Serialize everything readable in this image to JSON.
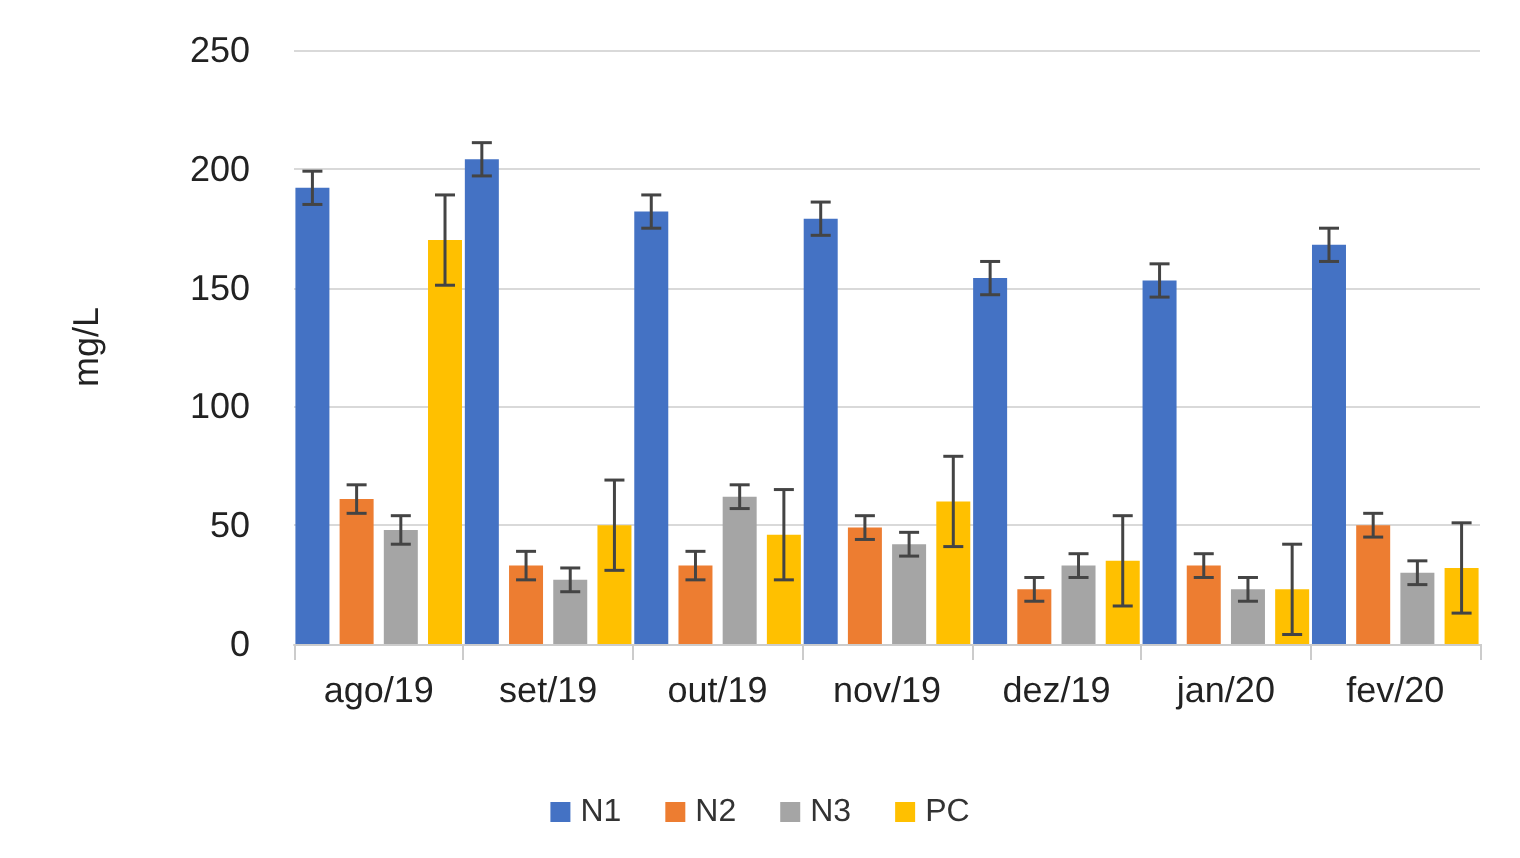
{
  "chart_data": {
    "type": "bar",
    "ylabel": "mg/L",
    "categories": [
      "ago/19",
      "set/19",
      "out/19",
      "nov/19",
      "dez/19",
      "jan/20",
      "fev/20"
    ],
    "series": [
      {
        "name": "N1",
        "color": "#4472c4",
        "values": [
          192,
          204,
          182,
          179,
          154,
          153,
          168
        ],
        "errors": [
          7,
          7,
          7,
          7,
          7,
          7,
          7
        ]
      },
      {
        "name": "N2",
        "color": "#ed7d31",
        "values": [
          61,
          33,
          33,
          49,
          23,
          33,
          50
        ],
        "errors": [
          6,
          6,
          6,
          5,
          5,
          5,
          5
        ]
      },
      {
        "name": "N3",
        "color": "#a5a5a5",
        "values": [
          48,
          27,
          62,
          42,
          33,
          23,
          30
        ],
        "errors": [
          6,
          5,
          5,
          5,
          5,
          5,
          5
        ]
      },
      {
        "name": "PC",
        "color": "#ffc000",
        "values": [
          170,
          50,
          46,
          60,
          35,
          23,
          32
        ],
        "errors": [
          19,
          19,
          19,
          19,
          19,
          19,
          19
        ]
      }
    ],
    "ylim": [
      0,
      250
    ],
    "yticks": [
      0,
      50,
      100,
      150,
      200,
      250
    ],
    "grid": "y",
    "legend": "bottom"
  }
}
